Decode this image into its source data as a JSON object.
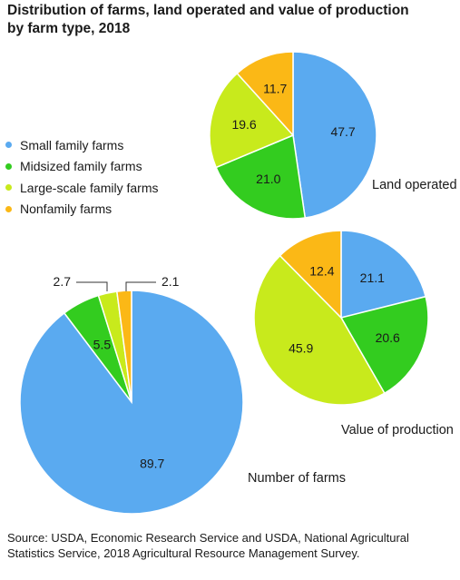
{
  "title_lines": [
    "Distribution of farms, land operated and value of production",
    "by farm type, 2018"
  ],
  "source_note": "Source: USDA, Economic Research Service and USDA, National Agricultural Statistics Service, 2018 Agricultural Resource Management Survey.",
  "chart_data": {
    "type": "pie",
    "title": "Distribution of farms, land operated and value of production by farm type, 2018",
    "legend_position": "left",
    "categories": [
      "Small family farms",
      "Midsized family farms",
      "Large-scale family farms",
      "Nonfamily farms"
    ],
    "colors": [
      "#5aaaf0",
      "#33cc1f",
      "#c8ea1c",
      "#fbb816"
    ],
    "pies": [
      {
        "name": "Land operated",
        "values": [
          47.7,
          21.0,
          19.6,
          11.7
        ],
        "labels": [
          "47.7",
          "21.0",
          "19.6",
          "11.7"
        ]
      },
      {
        "name": "Value of production",
        "values": [
          21.1,
          20.6,
          45.9,
          12.4
        ],
        "labels": [
          "21.1",
          "20.6",
          "45.9",
          "12.4"
        ]
      },
      {
        "name": "Number of farms",
        "values": [
          89.7,
          5.5,
          2.7,
          2.1
        ],
        "labels": [
          "89.7",
          "5.5",
          "2.7",
          "2.1"
        ]
      }
    ]
  }
}
